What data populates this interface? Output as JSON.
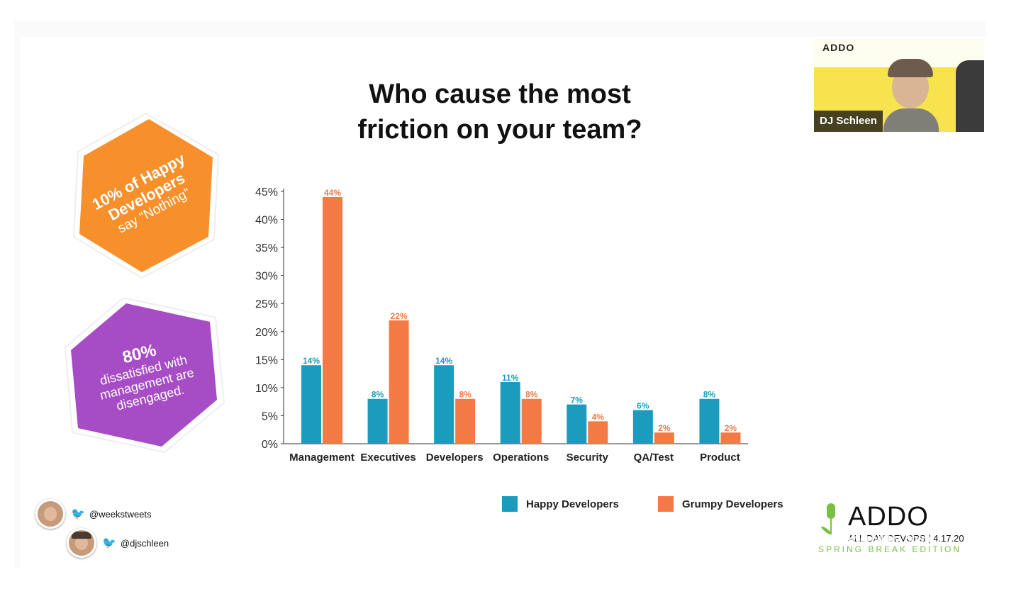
{
  "slide": {
    "title_line1": "Who cause the most",
    "title_line2": "friction on your team?"
  },
  "callouts": {
    "hex1": {
      "line1": "10% of Happy",
      "line2": "Developers",
      "line3": "say “Nothing”",
      "color": "#f7902a"
    },
    "hex2": {
      "line1": "80%",
      "line2": "dissatisfied with",
      "line3": "management are",
      "line4": "disengaged.",
      "color": "#a64cc4"
    }
  },
  "chart_data": {
    "type": "bar",
    "categories": [
      "Management",
      "Executives",
      "Developers",
      "Operations",
      "Security",
      "QA/Test",
      "Product"
    ],
    "series": [
      {
        "name": "Happy Developers",
        "values": [
          14,
          8,
          14,
          11,
          7,
          6,
          8
        ],
        "color": "#1b9cbf"
      },
      {
        "name": "Grumpy Developers",
        "values": [
          44,
          22,
          8,
          8,
          4,
          2,
          2
        ],
        "color": "#f47a45"
      }
    ],
    "yticks": [
      "0%",
      "5%",
      "10%",
      "15%",
      "20%",
      "25%",
      "30%",
      "35%",
      "40%",
      "45%"
    ],
    "ylim": [
      0,
      45
    ],
    "value_suffix": "%",
    "grid": false,
    "legend_position": "bottom"
  },
  "social": {
    "handle1": "@weekstweets",
    "handle2": "@djschleen"
  },
  "video": {
    "speaker_name": "DJ Schleen",
    "logo_text": "ADDO"
  },
  "event_logo": {
    "name": "ADDO",
    "tagline": "ALL DAY DEVOPS | 4.17.20",
    "edition": "SPRING BREAK EDITION",
    "overlay": "Powered by Zoom"
  }
}
